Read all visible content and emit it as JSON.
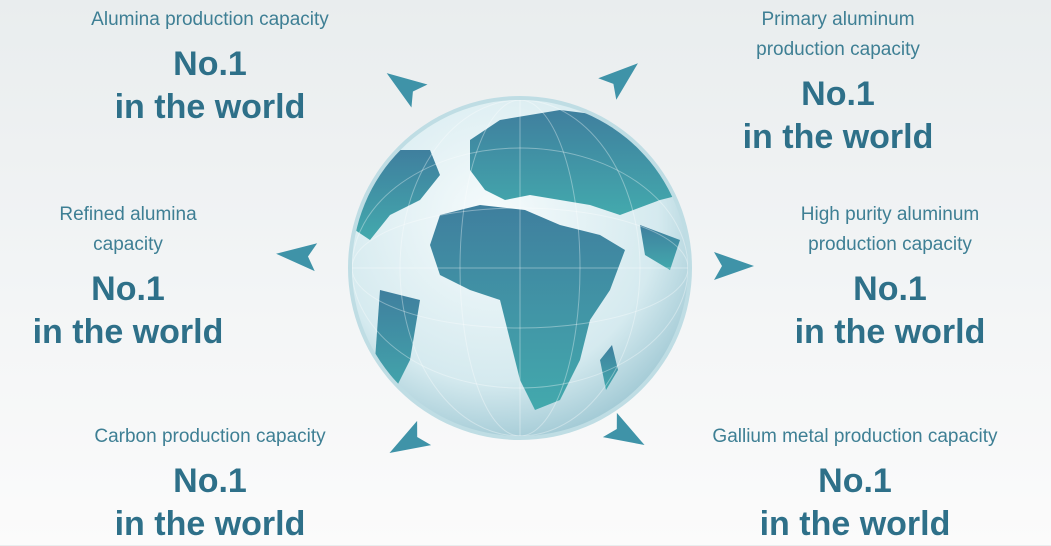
{
  "items": [
    {
      "label": [
        "Alumina production capacity"
      ],
      "rank": [
        "No.1",
        "in the world"
      ]
    },
    {
      "label": [
        "Primary aluminum",
        "production capacity"
      ],
      "rank": [
        "No.1",
        "in the world"
      ]
    },
    {
      "label": [
        "Refined alumina",
        "capacity"
      ],
      "rank": [
        "No.1",
        "in the world"
      ]
    },
    {
      "label": [
        "High purity aluminum",
        "production capacity"
      ],
      "rank": [
        "No.1",
        "in the world"
      ]
    },
    {
      "label": [
        "Carbon production capacity"
      ],
      "rank": [
        "No.1",
        "in the world"
      ]
    },
    {
      "label": [
        "Gallium metal production capacity"
      ],
      "rank": [
        "No.1",
        "in the world"
      ]
    }
  ]
}
